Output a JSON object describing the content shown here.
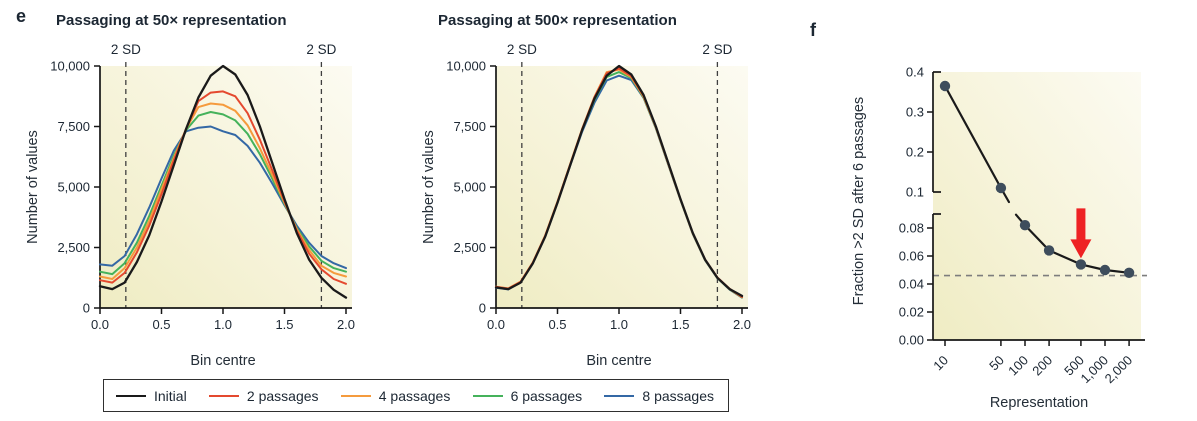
{
  "panels": {
    "e": "e",
    "f": "f"
  },
  "sd_label": "2 SD",
  "colors": {
    "axis": "#161616",
    "dashed_vertical": "#3f3f3f",
    "dashed_horizontal": "#7d7d7d",
    "background_gradient_light": "#fcfbf2",
    "background_gradient_dark": "#efecc3",
    "legend_border": "#2f2f2f"
  },
  "chart_data": [
    {
      "id": "passaging50",
      "type": "line",
      "title": "Passaging at 50× representation",
      "xlabel": "Bin centre",
      "ylabel": "Number of values",
      "xlim": [
        0,
        2
      ],
      "ylim": [
        0,
        10000
      ],
      "xticks": [
        0.0,
        0.5,
        1.0,
        1.5,
        2.0
      ],
      "xtick_labels": [
        "0.0",
        "0.5",
        "1.0",
        "1.5",
        "2.0"
      ],
      "yticks": [
        0,
        2500,
        5000,
        7500,
        10000
      ],
      "ytick_labels": [
        "0",
        "2,500",
        "5,000",
        "7,500",
        "10,000"
      ],
      "sd_lines_x": [
        0.21,
        1.8
      ],
      "x": [
        0,
        0.1,
        0.2,
        0.3,
        0.4,
        0.5,
        0.6,
        0.7,
        0.8,
        0.9,
        1.0,
        1.1,
        1.2,
        1.3,
        1.4,
        1.5,
        1.6,
        1.7,
        1.8,
        1.9,
        2.0
      ],
      "series": [
        {
          "name": "Initial",
          "color": "#1a1a1a",
          "values": [
            900,
            780,
            1050,
            1900,
            3000,
            4400,
            5900,
            7400,
            8700,
            9600,
            10000,
            9650,
            8800,
            7500,
            6000,
            4500,
            3100,
            2000,
            1250,
            750,
            430
          ]
        },
        {
          "name": "2 passages",
          "color": "#e4492f",
          "values": [
            1150,
            1050,
            1450,
            2300,
            3400,
            4700,
            6100,
            7400,
            8550,
            8900,
            8950,
            8750,
            8050,
            6950,
            5700,
            4400,
            3200,
            2250,
            1600,
            1200,
            1000
          ]
        },
        {
          "name": "4 passages",
          "color": "#f59b3d",
          "values": [
            1300,
            1200,
            1650,
            2500,
            3600,
            4900,
            6200,
            7400,
            8300,
            8450,
            8400,
            8150,
            7550,
            6600,
            5500,
            4350,
            3250,
            2400,
            1750,
            1450,
            1300
          ]
        },
        {
          "name": "6 passages",
          "color": "#45b25b",
          "values": [
            1500,
            1400,
            1850,
            2700,
            3800,
            5050,
            6300,
            7350,
            7950,
            8100,
            8000,
            7750,
            7200,
            6350,
            5350,
            4300,
            3300,
            2550,
            1950,
            1650,
            1500
          ]
        },
        {
          "name": "8 passages",
          "color": "#3468a5",
          "values": [
            1800,
            1750,
            2150,
            3050,
            4150,
            5350,
            6500,
            7300,
            7450,
            7500,
            7300,
            7150,
            6700,
            6000,
            5150,
            4250,
            3400,
            2700,
            2150,
            1850,
            1650
          ]
        }
      ]
    },
    {
      "id": "passaging500",
      "type": "line",
      "title": "Passaging at 500× representation",
      "xlabel": "Bin centre",
      "ylabel": "Number of values",
      "xlim": [
        0,
        2
      ],
      "ylim": [
        0,
        10000
      ],
      "xticks": [
        0.0,
        0.5,
        1.0,
        1.5,
        2.0
      ],
      "xtick_labels": [
        "0.0",
        "0.5",
        "1.0",
        "1.5",
        "2.0"
      ],
      "yticks": [
        0,
        2500,
        5000,
        7500,
        10000
      ],
      "ytick_labels": [
        "0",
        "2,500",
        "5,000",
        "7,500",
        "10,000"
      ],
      "sd_lines_x": [
        0.21,
        1.8
      ],
      "x": [
        0,
        0.1,
        0.2,
        0.3,
        0.4,
        0.5,
        0.6,
        0.7,
        0.8,
        0.9,
        1.0,
        1.1,
        1.2,
        1.3,
        1.4,
        1.5,
        1.6,
        1.7,
        1.8,
        1.9,
        2.0
      ],
      "series": [
        {
          "name": "Initial",
          "color": "#1a1a1a",
          "values": [
            850,
            780,
            1050,
            1850,
            2950,
            4350,
            5850,
            7350,
            8650,
            9600,
            10000,
            9650,
            8800,
            7500,
            6000,
            4500,
            3100,
            2000,
            1250,
            780,
            500
          ]
        },
        {
          "name": "2 passages",
          "color": "#e4492f",
          "values": [
            870,
            800,
            1080,
            1880,
            2980,
            4380,
            5880,
            7380,
            8700,
            9700,
            9900,
            9580,
            8760,
            7480,
            5980,
            4490,
            3090,
            2000,
            1260,
            790,
            460
          ]
        },
        {
          "name": "4 passages",
          "color": "#f59b3d",
          "values": [
            880,
            810,
            1090,
            1890,
            3000,
            4400,
            5900,
            7400,
            8720,
            9750,
            9850,
            9540,
            8730,
            7460,
            5960,
            4480,
            3080,
            1990,
            1250,
            780,
            450
          ]
        },
        {
          "name": "6 passages",
          "color": "#45b25b",
          "values": [
            860,
            790,
            1070,
            1870,
            2970,
            4370,
            5870,
            7350,
            8600,
            9550,
            9750,
            9500,
            8700,
            7440,
            5950,
            4470,
            3070,
            1980,
            1240,
            770,
            440
          ]
        },
        {
          "name": "8 passages",
          "color": "#3468a5",
          "values": [
            840,
            770,
            1060,
            1860,
            2950,
            4350,
            5840,
            7280,
            8480,
            9400,
            9600,
            9420,
            8680,
            7420,
            5930,
            4460,
            3060,
            1970,
            1230,
            760,
            430
          ]
        }
      ]
    },
    {
      "id": "fraction",
      "type": "scatter",
      "title": "",
      "xlabel": "Representation",
      "ylabel": "Fraction >2 SD after 6 passages",
      "xscale": "log",
      "x": [
        10,
        50,
        100,
        200,
        500,
        1000,
        2000
      ],
      "xtick_labels": [
        "10",
        "50",
        "100",
        "200",
        "500",
        "1,000",
        "2,000"
      ],
      "values": [
        0.365,
        0.11,
        0.082,
        0.064,
        0.054,
        0.05,
        0.048
      ],
      "broken_axis": {
        "top_ticks": [
          0.1,
          0.2,
          0.3,
          0.4
        ],
        "top_tick_labels": [
          "0.1",
          "0.2",
          "0.3",
          "0.4"
        ],
        "top_range": [
          0.1,
          0.4
        ],
        "bottom_ticks": [
          0,
          0.02,
          0.04,
          0.06,
          0.08
        ],
        "bottom_tick_labels": [
          "0.00",
          "0.02",
          "0.04",
          "0.06",
          "0.08"
        ],
        "bottom_range": [
          0,
          0.09
        ]
      },
      "dashed_line_y": 0.046,
      "arrow_at_x": 500,
      "line_color": "#1a1a1a",
      "point_color": "#3e4d5c",
      "arrow_color": "#ee2224"
    }
  ]
}
